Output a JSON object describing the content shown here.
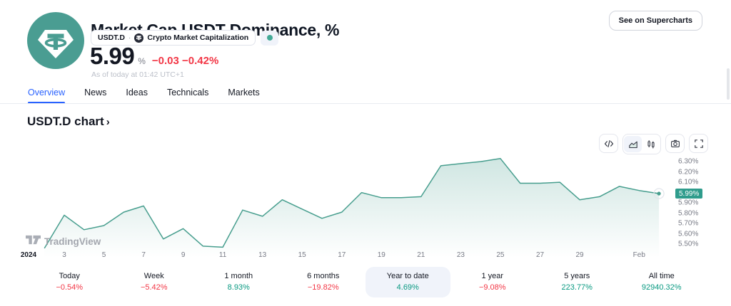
{
  "header": {
    "title": "Market Cap USDT Dominance, %",
    "symbol": "USDT.D",
    "separator": "·",
    "source_name": "Crypto Market Capitalization",
    "supercharts_button": "See on Supercharts",
    "price_value": "5.99",
    "price_unit": "%",
    "change": "−0.03 −0.42%",
    "as_of": "As of today at 01:42 UTC+1"
  },
  "tabs": [
    {
      "label": "Overview",
      "active": true
    },
    {
      "label": "News",
      "active": false
    },
    {
      "label": "Ideas",
      "active": false
    },
    {
      "label": "Technicals",
      "active": false
    },
    {
      "label": "Markets",
      "active": false
    }
  ],
  "chart_section": {
    "heading": "USDT.D chart",
    "chevron": "›"
  },
  "toolbar": {
    "icons": [
      "embed-code",
      "area-chart",
      "candlestick-chart",
      "snapshot-camera",
      "fullscreen"
    ],
    "selected_chart_type": "area-chart"
  },
  "watermark": {
    "text": "TradingView"
  },
  "chart_data": {
    "type": "area",
    "title": "Market Cap USDT Dominance, %",
    "x": [
      "Jan 2",
      "Jan 3",
      "Jan 4",
      "Jan 5",
      "Jan 6",
      "Jan 7",
      "Jan 8",
      "Jan 9",
      "Jan 10",
      "Jan 11",
      "Jan 12",
      "Jan 13",
      "Jan 14",
      "Jan 15",
      "Jan 16",
      "Jan 17",
      "Jan 18",
      "Jan 19",
      "Jan 20",
      "Jan 21",
      "Jan 22",
      "Jan 23",
      "Jan 24",
      "Jan 25",
      "Jan 26",
      "Jan 27",
      "Jan 28",
      "Jan 29",
      "Jan 30",
      "Jan 31",
      "Feb 1",
      "Feb 2"
    ],
    "values": [
      5.46,
      5.78,
      5.64,
      5.68,
      5.81,
      5.87,
      5.55,
      5.65,
      5.48,
      5.47,
      5.83,
      5.77,
      5.93,
      5.84,
      5.75,
      5.81,
      6.0,
      5.95,
      5.95,
      5.96,
      6.26,
      6.28,
      6.3,
      6.33,
      6.09,
      6.09,
      6.1,
      5.93,
      5.96,
      6.06,
      6.02,
      5.99
    ],
    "xlabel": "",
    "ylabel": "",
    "ylim": [
      5.42,
      6.4
    ],
    "grid": false,
    "legend": false,
    "y_ticks": [
      {
        "label": "6.30%",
        "value": 6.3
      },
      {
        "label": "6.20%",
        "value": 6.2
      },
      {
        "label": "6.10%",
        "value": 6.1
      },
      {
        "label": "5.90%",
        "value": 5.9
      },
      {
        "label": "5.80%",
        "value": 5.8
      },
      {
        "label": "5.70%",
        "value": 5.7
      },
      {
        "label": "5.60%",
        "value": 5.6
      },
      {
        "label": "5.50%",
        "value": 5.5
      }
    ],
    "current": {
      "label": "5.99%",
      "value": 5.99
    },
    "x_ticks": [
      {
        "label": "2024",
        "day": 1.2,
        "year_marker": true
      },
      {
        "label": "3",
        "day": 3
      },
      {
        "label": "5",
        "day": 5
      },
      {
        "label": "7",
        "day": 7
      },
      {
        "label": "9",
        "day": 9
      },
      {
        "label": "11",
        "day": 11
      },
      {
        "label": "13",
        "day": 13
      },
      {
        "label": "15",
        "day": 15
      },
      {
        "label": "17",
        "day": 17
      },
      {
        "label": "19",
        "day": 19
      },
      {
        "label": "21",
        "day": 21
      },
      {
        "label": "23",
        "day": 23
      },
      {
        "label": "25",
        "day": 25
      },
      {
        "label": "27",
        "day": 27
      },
      {
        "label": "29",
        "day": 29
      },
      {
        "label": "Feb",
        "day": 32
      }
    ]
  },
  "periods": [
    {
      "label": "Today",
      "value": "−0.54%",
      "trend": "down",
      "selected": false
    },
    {
      "label": "Week",
      "value": "−5.42%",
      "trend": "down",
      "selected": false
    },
    {
      "label": "1 month",
      "value": "8.93%",
      "trend": "up",
      "selected": false
    },
    {
      "label": "6 months",
      "value": "−19.82%",
      "trend": "down",
      "selected": false
    },
    {
      "label": "Year to date",
      "value": "4.69%",
      "trend": "up",
      "selected": true
    },
    {
      "label": "1 year",
      "value": "−9.08%",
      "trend": "down",
      "selected": false
    },
    {
      "label": "5 years",
      "value": "223.77%",
      "trend": "up",
      "selected": false
    },
    {
      "label": "All time",
      "value": "92940.32%",
      "trend": "up",
      "selected": false
    }
  ],
  "colors": {
    "up": "#089981",
    "down": "#f23645",
    "line": "#479e8e",
    "fill_top": "rgba(71,158,142,0.26)",
    "fill_bottom": "rgba(71,158,142,0)",
    "tab_active": "#2962ff",
    "current_chip_bg": "#2f9c8c",
    "logo_teal": "#4a9d92",
    "status_dot": "#42a996"
  }
}
